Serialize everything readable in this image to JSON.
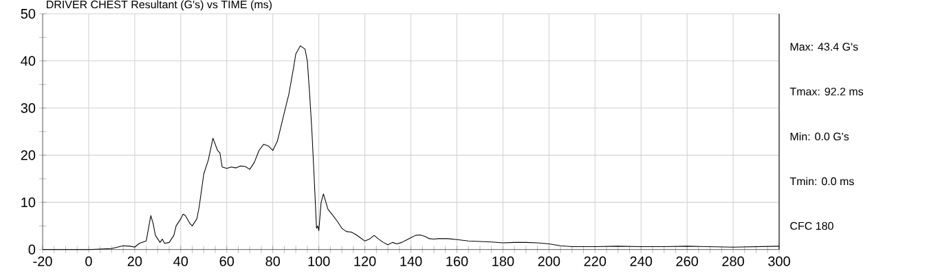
{
  "chart_data": {
    "type": "line",
    "title": "DRIVER CHEST Resultant (G's) vs TIME (ms)",
    "x": [
      -20,
      0,
      10,
      15,
      18,
      20,
      22,
      25,
      27,
      28,
      29,
      31,
      32,
      33,
      35,
      37,
      38,
      40,
      41,
      42,
      44,
      45,
      47,
      48,
      50,
      52,
      54,
      56,
      57,
      58,
      60,
      62,
      64,
      66,
      68,
      70,
      72,
      74,
      76,
      78,
      80,
      82,
      84,
      86,
      87,
      89,
      90,
      92,
      94,
      95,
      96,
      97,
      98,
      99,
      99.5,
      100,
      101,
      102,
      104,
      106,
      108,
      110,
      112,
      114,
      116,
      118,
      120,
      122,
      124,
      126,
      128,
      130,
      132,
      134,
      136,
      138,
      140,
      142,
      144,
      146,
      148,
      150,
      152,
      156,
      160,
      165,
      170,
      175,
      180,
      185,
      190,
      195,
      200,
      205,
      210,
      220,
      230,
      240,
      250,
      260,
      270,
      280,
      290,
      300
    ],
    "series": [
      {
        "color": "#000000",
        "values": [
          0,
          0,
          0.2,
          0.8,
          0.7,
          0.5,
          1.3,
          1.8,
          7.2,
          5.5,
          3,
          1.5,
          2.2,
          1.3,
          1.5,
          3,
          5,
          6.5,
          7.5,
          7.2,
          5.5,
          5,
          6.5,
          9,
          16,
          19,
          23.6,
          21,
          20.5,
          17.5,
          17.2,
          17.5,
          17.3,
          17.7,
          17.6,
          17,
          18.5,
          21,
          22.3,
          22,
          21,
          23,
          27,
          31,
          33,
          38.5,
          41.5,
          43.2,
          42.5,
          40,
          33,
          25,
          15,
          4.5,
          5,
          4,
          10,
          11.8,
          8.5,
          7.3,
          6,
          4.5,
          3.8,
          3.7,
          3.2,
          2.5,
          1.8,
          2.2,
          3,
          2.2,
          1.5,
          1,
          1.5,
          1.2,
          1.5,
          2,
          2.5,
          3,
          3.1,
          2.8,
          2.3,
          2.2,
          2.3,
          2.3,
          2.1,
          1.8,
          1.7,
          1.6,
          1.4,
          1.5,
          1.5,
          1.4,
          1.2,
          0.8,
          0.6,
          0.6,
          0.7,
          0.6,
          0.6,
          0.7,
          0.6,
          0.5,
          0.6,
          0.7
        ]
      }
    ],
    "xlim": [
      -20,
      300
    ],
    "ylim": [
      0,
      50
    ],
    "xticks": [
      -20,
      0,
      20,
      40,
      60,
      80,
      100,
      120,
      140,
      160,
      180,
      200,
      220,
      240,
      260,
      280,
      300
    ],
    "yticks": [
      0,
      10,
      20,
      30,
      40,
      50
    ],
    "grid": true,
    "marker": "none",
    "line_style": "solid",
    "annotations": [
      "Max: 43.4 G's",
      "Tmax: 92.2 ms",
      "Min: 0.0 G's",
      "Tmin: 0.0 ms",
      "CFC 180"
    ]
  }
}
